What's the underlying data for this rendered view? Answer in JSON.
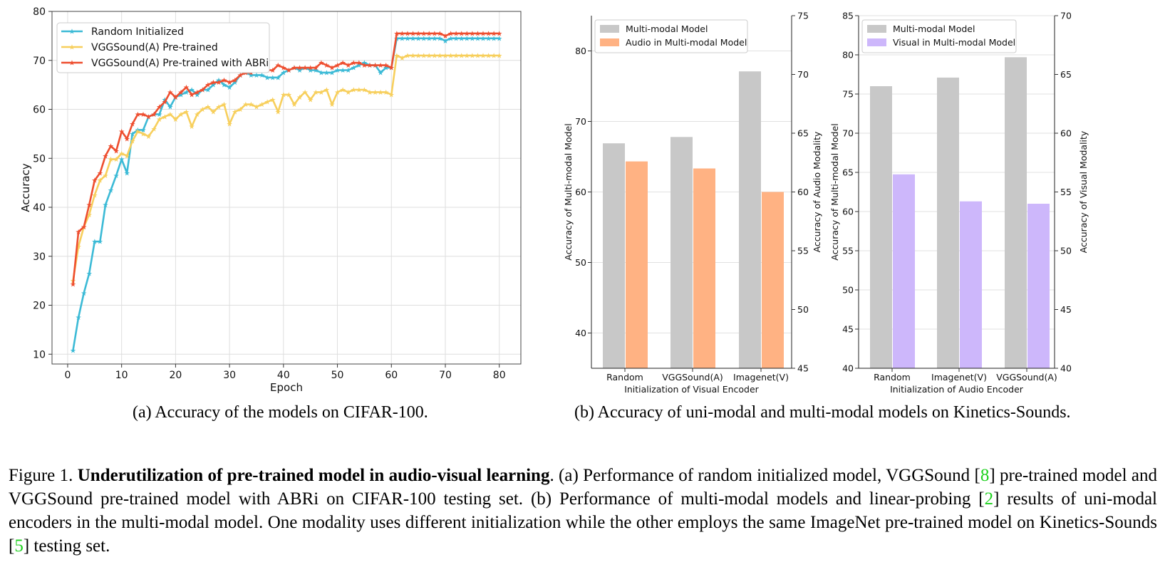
{
  "colors": {
    "random": "#3bbad6",
    "vggsound": "#f7cf5c",
    "abri": "#ee4e2f",
    "mm_bar": "#c8c8c8",
    "audio_bar": "#ffb283",
    "visual_bar": "#cdb7fb",
    "cite": "#1fd11f"
  },
  "subcaption_a": "(a) Accuracy of the models on CIFAR-100.",
  "subcaption_b": "(b) Accuracy of uni-modal and multi-modal models on Kinetics-Sounds.",
  "figure_caption": {
    "prefix": "Figure 1. ",
    "bold": "Underutilization of pre-trained model in audio-visual learning",
    "t1": ". (a) Performance of random initialized model, VGGSound [",
    "c1": "8",
    "t2": "] pre-trained model and VGGSound pre-trained model with ABRi on CIFAR-100 testing set. (b) Performance of multi-modal models and linear-probing [",
    "c2": "2",
    "t3": "] results of uni-modal encoders in the multi-modal model.  One modality uses different initialization while the other employs the same ImageNet pre-trained model on Kinetics-Sounds [",
    "c3": "5",
    "t4": "] testing set."
  },
  "chart_data": [
    {
      "type": "line",
      "xlabel": "Epoch",
      "ylabel": "Accuracy",
      "xlim": [
        -2.9,
        84
      ],
      "ylim": [
        8,
        80
      ],
      "xticks": [
        0,
        10,
        20,
        30,
        40,
        50,
        60,
        70,
        80
      ],
      "yticks": [
        10,
        20,
        30,
        40,
        50,
        60,
        70,
        80
      ],
      "grid": true,
      "legend_position": "upper-left",
      "x": [
        1,
        2,
        3,
        4,
        5,
        6,
        7,
        8,
        9,
        10,
        11,
        12,
        13,
        14,
        15,
        16,
        17,
        18,
        19,
        20,
        21,
        22,
        23,
        24,
        25,
        26,
        27,
        28,
        29,
        30,
        31,
        32,
        33,
        34,
        35,
        36,
        37,
        38,
        39,
        40,
        41,
        42,
        43,
        44,
        45,
        46,
        47,
        48,
        49,
        50,
        51,
        52,
        53,
        54,
        55,
        56,
        57,
        58,
        59,
        60,
        61,
        62,
        63,
        64,
        65,
        66,
        67,
        68,
        69,
        70,
        71,
        72,
        73,
        74,
        75,
        76,
        77,
        78,
        79,
        80
      ],
      "series": [
        {
          "name": "Random Initialized",
          "values": [
            10.8,
            17.5,
            22.5,
            26.5,
            33,
            33,
            40.5,
            43.5,
            46.5,
            49.8,
            47,
            55,
            55.8,
            55.8,
            58.5,
            59,
            59,
            62,
            60.5,
            62.5,
            63,
            63.5,
            64,
            63,
            64,
            64,
            65,
            66,
            65,
            64.5,
            65.5,
            67,
            67.5,
            67,
            67,
            67,
            66.5,
            66.5,
            66.5,
            67.5,
            68,
            68.5,
            68,
            68.5,
            68,
            68,
            67.5,
            67.5,
            67.5,
            68,
            68,
            68,
            68.5,
            69,
            69.5,
            69,
            69,
            67.5,
            68.5,
            68.5,
            74.5,
            74.5,
            74.5,
            74.5,
            74.5,
            74.5,
            74.5,
            74.5,
            74.5,
            74,
            74.5,
            74.5,
            74.5,
            74.5,
            74.5,
            74.5,
            74.5,
            74.5,
            74.5,
            74.5
          ]
        },
        {
          "name": "VGGSound(A) Pre-trained",
          "values": [
            25,
            32,
            36,
            38.5,
            42.5,
            45.5,
            46.5,
            49.8,
            49.8,
            51,
            50.5,
            53.5,
            55.5,
            55,
            54.5,
            56,
            58,
            58.5,
            59,
            58,
            59,
            59.5,
            56.5,
            59,
            60,
            60.5,
            59.5,
            60.5,
            61,
            57,
            59.5,
            60,
            61,
            61,
            60.5,
            61,
            61.5,
            62,
            59.5,
            63,
            63,
            61,
            62.5,
            63.5,
            62,
            63.5,
            63.5,
            64,
            61,
            63.5,
            64,
            63.5,
            64,
            64,
            64,
            63.5,
            63.5,
            63.5,
            63.5,
            63,
            71,
            70.5,
            71,
            71,
            71,
            71,
            71,
            71,
            71,
            71,
            71,
            71,
            71,
            71,
            71,
            71,
            71,
            71,
            71,
            71
          ]
        },
        {
          "name": "VGGSound(A) Pre-trained with ABRi",
          "values": [
            24.3,
            35,
            36,
            40.5,
            45.5,
            47,
            50.5,
            52.5,
            51.5,
            55.5,
            54,
            57,
            59,
            59,
            58.5,
            59,
            60.5,
            61.5,
            63.5,
            62.5,
            63.5,
            64.5,
            63,
            63.5,
            64,
            65,
            65.5,
            65.5,
            66,
            65.5,
            66,
            67,
            67.5,
            67.5,
            68,
            68,
            68,
            68,
            69,
            68.5,
            68,
            68.5,
            68.5,
            68.5,
            68.5,
            68.5,
            69.5,
            69,
            68.5,
            69,
            69.5,
            69,
            69.5,
            69.5,
            69,
            69,
            69,
            69,
            69,
            68.5,
            75.5,
            75.5,
            75.5,
            75.5,
            75.5,
            75.5,
            75.5,
            75.5,
            75.5,
            75,
            75.5,
            75.5,
            75.5,
            75.5,
            75.5,
            75.5,
            75.5,
            75.5,
            75.5,
            75.5
          ]
        }
      ]
    },
    {
      "type": "bar",
      "xlabel": "Initialization of Visual Encoder",
      "ylabel": "Accuracy of Multi-modal Model",
      "y2label": "Accuracy of Audio Modality",
      "categories": [
        "Random",
        "VGGSound(A)",
        "Imagenet(V)"
      ],
      "ylim": [
        35,
        85
      ],
      "y2lim": [
        45,
        75
      ],
      "yticks": [
        40,
        50,
        60,
        70,
        80
      ],
      "y2ticks": [
        45,
        50,
        55,
        60,
        65,
        70,
        75
      ],
      "legend_position": "upper-left",
      "series": [
        {
          "name": "Multi-modal Model",
          "axis": "left",
          "values": [
            66.9,
            67.8,
            77.1
          ]
        },
        {
          "name": "Audio in Multi-modal Model",
          "axis": "right",
          "values": [
            62.6,
            62,
            60
          ]
        }
      ]
    },
    {
      "type": "bar",
      "xlabel": "Initialization of Audio Encoder",
      "ylabel": "Accuracy of Multi-modal Model",
      "y2label": "Accuracy of Visual Modality",
      "categories": [
        "Random",
        "Imagenet(V)",
        "VGGSound(A)"
      ],
      "ylim": [
        40,
        85
      ],
      "y2lim": [
        40,
        70
      ],
      "yticks": [
        40,
        45,
        50,
        55,
        60,
        65,
        70,
        75,
        80,
        85
      ],
      "y2ticks": [
        40,
        45,
        50,
        55,
        60,
        65,
        70
      ],
      "legend_position": "upper-left",
      "series": [
        {
          "name": "Multi-modal Model",
          "axis": "left",
          "values": [
            76,
            77.1,
            79.7
          ]
        },
        {
          "name": "Visual in Multi-modal Model",
          "axis": "right",
          "values": [
            56.5,
            54.2,
            54
          ]
        }
      ]
    }
  ]
}
